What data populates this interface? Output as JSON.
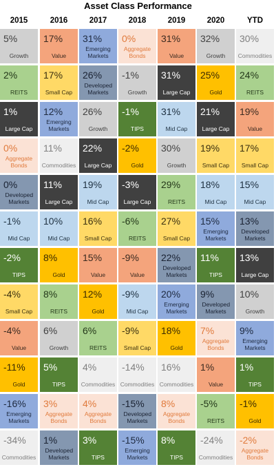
{
  "title": "Asset Class Performance",
  "colors": {
    "Growth": {
      "bg": "#d0d0d0",
      "fg": "#404040"
    },
    "Value": {
      "bg": "#f4a47c",
      "fg": "#3a2a20"
    },
    "Emerging Markets": {
      "bg": "#8faadc",
      "fg": "#1e2a40"
    },
    "Aggregate Bonds": {
      "bg": "#fbe2d5",
      "fg": "#e07a3c"
    },
    "Commodities": {
      "bg": "#efefef",
      "fg": "#7f7f7f"
    },
    "REITS": {
      "bg": "#a9d18e",
      "fg": "#24381a"
    },
    "Small Cap": {
      "bg": "#ffd966",
      "fg": "#3a3010"
    },
    "Developed Markets": {
      "bg": "#8497b0",
      "fg": "#1a2232"
    },
    "Large Cap": {
      "bg": "#404040",
      "fg": "#ffffff"
    },
    "Gold": {
      "bg": "#ffc000",
      "fg": "#3a2a00"
    },
    "TIPS": {
      "bg": "#548235",
      "fg": "#ffffff"
    },
    "Mid Cap": {
      "bg": "#bdd7ee",
      "fg": "#1e3040"
    }
  },
  "chart_data": {
    "type": "table",
    "title": "Asset Class Performance",
    "columns": [
      "2015",
      "2016",
      "2017",
      "2018",
      "2019",
      "2020",
      "YTD"
    ],
    "cells": [
      [
        {
          "value": "5%",
          "label": "Growth"
        },
        {
          "value": "2%",
          "label": "REITS"
        },
        {
          "value": "1%",
          "label": "Large Cap"
        },
        {
          "value": "0%",
          "label": "Aggregate Bonds"
        },
        {
          "value": "0%",
          "label": "Developed Markets"
        },
        {
          "value": "-1%",
          "label": "Mid Cap"
        },
        {
          "value": "-2%",
          "label": "TIPS"
        },
        {
          "value": "-4%",
          "label": "Small Cap"
        },
        {
          "value": "-4%",
          "label": "Value"
        },
        {
          "value": "-11%",
          "label": "Gold"
        },
        {
          "value": "-16%",
          "label": "Emerging Markets"
        },
        {
          "value": "-34%",
          "label": "Commodities"
        }
      ],
      [
        {
          "value": "17%",
          "label": "Value"
        },
        {
          "value": "17%",
          "label": "Small Cap"
        },
        {
          "value": "12%",
          "label": "Emerging Markets"
        },
        {
          "value": "11%",
          "label": "Commodities"
        },
        {
          "value": "11%",
          "label": "Large Cap"
        },
        {
          "value": "10%",
          "label": "Mid Cap"
        },
        {
          "value": "8%",
          "label": "Gold"
        },
        {
          "value": "8%",
          "label": "REITS"
        },
        {
          "value": "6%",
          "label": "Growth"
        },
        {
          "value": "5%",
          "label": "TIPS"
        },
        {
          "value": "3%",
          "label": "Aggregate Bonds"
        },
        {
          "value": "1%",
          "label": "Developed Markets"
        }
      ],
      [
        {
          "value": "31%",
          "label": "Emerging Markets"
        },
        {
          "value": "26%",
          "label": "Developed Markets"
        },
        {
          "value": "26%",
          "label": "Growth"
        },
        {
          "value": "22%",
          "label": "Large Cap"
        },
        {
          "value": "19%",
          "label": "Mid Cap"
        },
        {
          "value": "16%",
          "label": "Small Cap"
        },
        {
          "value": "15%",
          "label": "Value"
        },
        {
          "value": "12%",
          "label": "Gold"
        },
        {
          "value": "6%",
          "label": "REITS"
        },
        {
          "value": "4%",
          "label": "Commodities"
        },
        {
          "value": "4%",
          "label": "Aggregate Bonds"
        },
        {
          "value": "3%",
          "label": "TIPS"
        }
      ],
      [
        {
          "value": "0%",
          "label": "Aggregate Bonds"
        },
        {
          "value": "-1%",
          "label": "Growth"
        },
        {
          "value": "-1%",
          "label": "TIPS"
        },
        {
          "value": "-2%",
          "label": "Gold"
        },
        {
          "value": "-3%",
          "label": "Large Cap"
        },
        {
          "value": "-6%",
          "label": "REITS"
        },
        {
          "value": "-9%",
          "label": "Value"
        },
        {
          "value": "-9%",
          "label": "Mid Cap"
        },
        {
          "value": "-9%",
          "label": "Small Cap"
        },
        {
          "value": "-14%",
          "label": "Commodities"
        },
        {
          "value": "-15%",
          "label": "Developed Markets"
        },
        {
          "value": "-15%",
          "label": "Emerging Markets"
        }
      ],
      [
        {
          "value": "31%",
          "label": "Value"
        },
        {
          "value": "31%",
          "label": "Large Cap"
        },
        {
          "value": "31%",
          "label": "Mid Cap"
        },
        {
          "value": "30%",
          "label": "Growth"
        },
        {
          "value": "29%",
          "label": "REITS"
        },
        {
          "value": "27%",
          "label": "Small Cap"
        },
        {
          "value": "22%",
          "label": "Developed Markets"
        },
        {
          "value": "20%",
          "label": "Emerging Markets"
        },
        {
          "value": "18%",
          "label": "Gold"
        },
        {
          "value": "16%",
          "label": "Commodities"
        },
        {
          "value": "8%",
          "label": "Aggregate Bonds"
        },
        {
          "value": "8%",
          "label": "TIPS"
        }
      ],
      [
        {
          "value": "32%",
          "label": "Growth"
        },
        {
          "value": "25%",
          "label": "Gold"
        },
        {
          "value": "21%",
          "label": "Large Cap"
        },
        {
          "value": "19%",
          "label": "Small Cap"
        },
        {
          "value": "18%",
          "label": "Mid Cap"
        },
        {
          "value": "15%",
          "label": "Emerging Markets"
        },
        {
          "value": "11%",
          "label": "TIPS"
        },
        {
          "value": "9%",
          "label": "Developed Markets"
        },
        {
          "value": "7%",
          "label": "Aggregate Bonds"
        },
        {
          "value": "1%",
          "label": "Value"
        },
        {
          "value": "-5%",
          "label": "REITS"
        },
        {
          "value": "-24%",
          "label": "Commodities"
        }
      ],
      [
        {
          "value": "30%",
          "label": "Commodities"
        },
        {
          "value": "24%",
          "label": "REITS"
        },
        {
          "value": "19%",
          "label": "Value"
        },
        {
          "value": "17%",
          "label": "Small Cap"
        },
        {
          "value": "15%",
          "label": "Mid Cap"
        },
        {
          "value": "13%",
          "label": "Developed Markets"
        },
        {
          "value": "13%",
          "label": "Large Cap"
        },
        {
          "value": "10%",
          "label": "Growth"
        },
        {
          "value": "9%",
          "label": "Emerging Markets"
        },
        {
          "value": "1%",
          "label": "TIPS"
        },
        {
          "value": "-1%",
          "label": "Gold"
        },
        {
          "value": "-2%",
          "label": "Aggregate Bonds"
        }
      ]
    ]
  }
}
